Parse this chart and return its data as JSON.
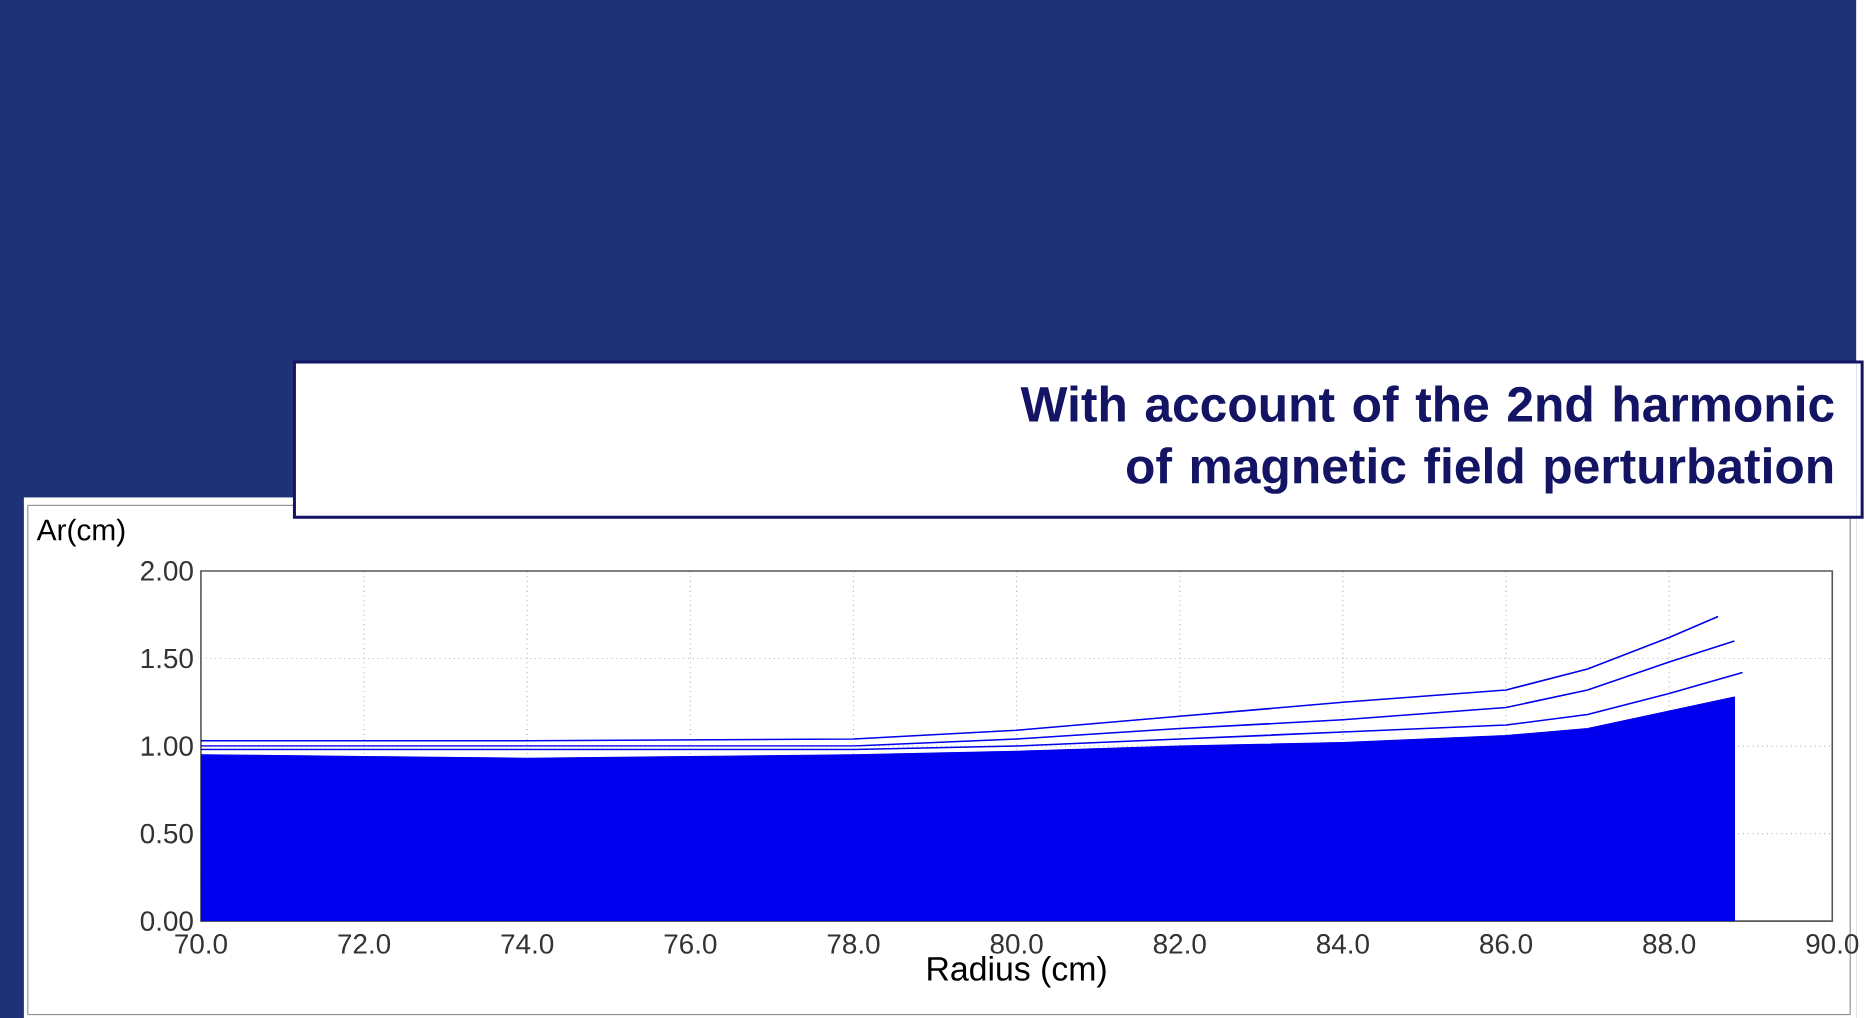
{
  "chart_data": {
    "type": "line",
    "title": "With account of the 2nd harmonic of magnetic field perturbation",
    "xlabel": "Radius (cm)",
    "ylabel": "Ar(cm)",
    "xlim": [
      70,
      90
    ],
    "ylim": [
      0,
      2
    ],
    "xticks": [
      {
        "value": 70,
        "label": "70.0"
      },
      {
        "value": 72,
        "label": "72.0"
      },
      {
        "value": 74,
        "label": "74.0"
      },
      {
        "value": 76,
        "label": "76.0"
      },
      {
        "value": 78,
        "label": "78.0"
      },
      {
        "value": 80,
        "label": "80.0"
      },
      {
        "value": 82,
        "label": "82.0"
      },
      {
        "value": 84,
        "label": "84.0"
      },
      {
        "value": 86,
        "label": "86.0"
      },
      {
        "value": 88,
        "label": "88.0"
      },
      {
        "value": 90,
        "label": "90.0"
      }
    ],
    "yticks": [
      {
        "value": 0,
        "label": "0.00"
      },
      {
        "value": 0.5,
        "label": "0.50"
      },
      {
        "value": 1,
        "label": "1.00"
      },
      {
        "value": 1.5,
        "label": "1.50"
      },
      {
        "value": 2,
        "label": "2.00"
      }
    ],
    "grid": true,
    "series": [
      {
        "type": "area",
        "color": "#0000ee",
        "x": [
          70,
          72,
          74,
          76,
          78,
          80,
          82,
          84,
          86,
          87,
          88,
          88.5,
          88.8
        ],
        "values": [
          0.95,
          0.94,
          0.93,
          0.94,
          0.95,
          0.97,
          1.0,
          1.02,
          1.06,
          1.1,
          1.2,
          1.25,
          1.28
        ]
      },
      {
        "color": "#0000ee",
        "x": [
          70,
          74,
          78,
          80,
          82,
          84,
          86,
          87,
          88,
          88.6
        ],
        "values": [
          1.03,
          1.03,
          1.04,
          1.09,
          1.17,
          1.25,
          1.32,
          1.44,
          1.62,
          1.74
        ]
      },
      {
        "color": "#0000ee",
        "x": [
          70,
          74,
          78,
          80,
          82,
          84,
          86,
          87,
          88,
          88.8
        ],
        "values": [
          1.0,
          1.0,
          1.0,
          1.04,
          1.1,
          1.15,
          1.22,
          1.32,
          1.48,
          1.6
        ]
      },
      {
        "color": "#0000ee",
        "x": [
          70,
          74,
          78,
          80,
          82,
          84,
          86,
          87,
          88,
          88.9
        ],
        "values": [
          0.98,
          0.98,
          0.98,
          1.0,
          1.04,
          1.08,
          1.12,
          1.18,
          1.3,
          1.42
        ]
      }
    ]
  }
}
